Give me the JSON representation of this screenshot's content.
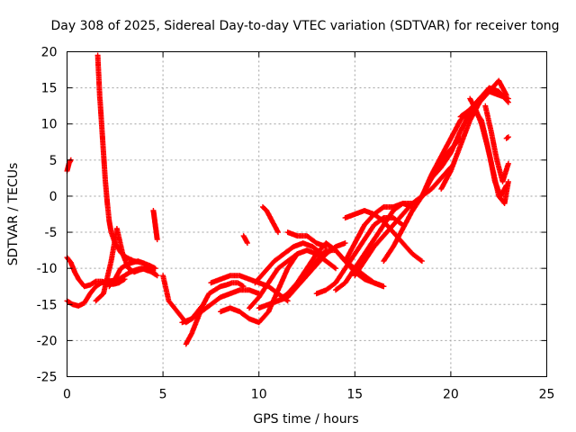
{
  "chart_data": {
    "type": "scatter",
    "title": "Day 308 of 2025, Sidereal Day-to-day VTEC variation (SDTVAR) for receiver tong",
    "xlabel": "GPS time / hours",
    "ylabel": "SDTVAR / TECUs",
    "xlim": [
      0,
      25
    ],
    "ylim": [
      -25,
      20
    ],
    "xticks": [
      0,
      5,
      10,
      15,
      20,
      25
    ],
    "yticks": [
      -25,
      -20,
      -15,
      -10,
      -5,
      0,
      5,
      10,
      15,
      20
    ],
    "xtick_labels": [
      "0",
      "5",
      "10",
      "15",
      "20",
      "25"
    ],
    "ytick_labels": [
      "-25",
      "-20",
      "-15",
      "-10",
      "-5",
      "0",
      "5",
      "10",
      "15",
      "20"
    ],
    "grid": true,
    "marker": "+",
    "color": "#ff0000",
    "series": [
      {
        "name": "s1",
        "x": [
          0.0,
          0.1,
          0.2
        ],
        "y": [
          3.5,
          4.5,
          5.0
        ]
      },
      {
        "name": "s2",
        "x": [
          0.0,
          0.3,
          0.6,
          0.9,
          1.2,
          1.5,
          1.8,
          2.1,
          2.4,
          2.7,
          3.0,
          3.3,
          3.6,
          3.9,
          4.2,
          4.5
        ],
        "y": [
          -14.5,
          -15.0,
          -15.2,
          -14.8,
          -13.5,
          -12.5,
          -12.0,
          -11.8,
          -11.7,
          -11.5,
          -11.0,
          -10.5,
          -10.2,
          -10.0,
          -10.3,
          -10.5
        ]
      },
      {
        "name": "s3",
        "x": [
          0.0,
          0.2,
          0.4,
          0.6,
          0.9,
          1.2,
          1.5,
          1.8,
          2.1,
          2.4,
          2.7,
          3.0
        ],
        "y": [
          -8.5,
          -9.2,
          -10.5,
          -11.5,
          -12.5,
          -12.3,
          -11.8,
          -11.8,
          -12.0,
          -12.2,
          -12.0,
          -11.5
        ]
      },
      {
        "name": "s4",
        "x": [
          1.6,
          1.7,
          1.8,
          1.9,
          2.0,
          2.1,
          2.2,
          2.3,
          2.5,
          2.8,
          3.1,
          3.5,
          3.9,
          4.3,
          4.6
        ],
        "y": [
          19.5,
          14.0,
          10.0,
          6.0,
          2.0,
          -1.0,
          -3.5,
          -5.0,
          -6.5,
          -7.8,
          -8.5,
          -9.0,
          -9.2,
          -9.6,
          -10.0
        ]
      },
      {
        "name": "s5",
        "x": [
          1.5,
          1.9,
          2.3,
          2.6,
          2.9,
          3.2,
          3.5,
          3.8,
          4.1,
          4.4,
          4.7
        ],
        "y": [
          -14.5,
          -13.5,
          -9.0,
          -4.5,
          -8.0,
          -10.0,
          -10.5,
          -10.2,
          -10.0,
          -10.5,
          -11.0
        ]
      },
      {
        "name": "s6",
        "x": [
          2.2,
          2.5,
          2.8,
          3.1,
          3.4,
          3.7,
          4.0,
          4.3,
          4.6
        ],
        "y": [
          -12.5,
          -11.5,
          -10.0,
          -9.5,
          -9.2,
          -9.0,
          -9.3,
          -10.0,
          -10.8
        ]
      },
      {
        "name": "s7",
        "x": [
          4.5,
          4.55,
          4.6,
          4.65,
          4.7
        ],
        "y": [
          -2.0,
          -3.0,
          -4.0,
          -5.0,
          -6.0
        ]
      },
      {
        "name": "s8",
        "x": [
          5.0,
          5.3,
          5.6,
          5.9,
          6.2,
          6.5,
          6.8,
          7.1
        ],
        "y": [
          -11.0,
          -14.5,
          -15.5,
          -16.5,
          -17.5,
          -17.0,
          -16.0,
          -15.0
        ]
      },
      {
        "name": "s9",
        "x": [
          6.2,
          6.5,
          6.8,
          7.1,
          7.4,
          7.7,
          8.0,
          8.3,
          8.6,
          8.9,
          9.2
        ],
        "y": [
          -20.5,
          -19.0,
          -17.0,
          -15.0,
          -13.5,
          -13.0,
          -12.5,
          -12.3,
          -12.0,
          -12.0,
          -12.5
        ]
      },
      {
        "name": "s10",
        "x": [
          6.0,
          6.5,
          7.0,
          7.5,
          8.0,
          8.5,
          9.0,
          9.5,
          10.0
        ],
        "y": [
          -17.5,
          -17.0,
          -16.0,
          -15.0,
          -14.0,
          -13.5,
          -13.0,
          -13.0,
          -13.5
        ]
      },
      {
        "name": "s11",
        "x": [
          7.5,
          8.0,
          8.5,
          9.0,
          9.5,
          10.0,
          10.5,
          11.0,
          11.5
        ],
        "y": [
          -12.0,
          -11.5,
          -11.0,
          -11.0,
          -11.5,
          -12.0,
          -12.5,
          -13.5,
          -14.5
        ]
      },
      {
        "name": "s12",
        "x": [
          8.0,
          8.5,
          9.0,
          9.5,
          10.0,
          10.5,
          11.0,
          11.5,
          12.0
        ],
        "y": [
          -16.0,
          -15.5,
          -16.0,
          -17.0,
          -17.5,
          -16.0,
          -13.0,
          -10.0,
          -8.0
        ]
      },
      {
        "name": "s13",
        "x": [
          9.2,
          9.3,
          9.4
        ],
        "y": [
          -5.5,
          -6.0,
          -6.5
        ]
      },
      {
        "name": "s14",
        "x": [
          9.5,
          10.0,
          10.5,
          11.0,
          11.5,
          12.0,
          12.5,
          13.0,
          13.5,
          14.0
        ],
        "y": [
          -15.5,
          -14.0,
          -12.0,
          -10.0,
          -9.0,
          -8.0,
          -7.5,
          -8.0,
          -9.0,
          -10.0
        ]
      },
      {
        "name": "s15",
        "x": [
          9.8,
          10.3,
          10.8,
          11.3,
          11.8,
          12.3,
          12.8,
          13.3
        ],
        "y": [
          -12.0,
          -10.5,
          -9.0,
          -8.0,
          -7.0,
          -6.5,
          -7.0,
          -8.0
        ]
      },
      {
        "name": "s16",
        "x": [
          10.0,
          10.5,
          11.0,
          11.5,
          12.0,
          12.5,
          13.0,
          13.5,
          14.0,
          14.5
        ],
        "y": [
          -15.5,
          -15.0,
          -14.5,
          -14.0,
          -12.5,
          -11.0,
          -9.5,
          -8.0,
          -7.0,
          -6.5
        ]
      },
      {
        "name": "s17",
        "x": [
          10.2,
          10.4,
          10.6,
          10.8,
          11.0
        ],
        "y": [
          -1.5,
          -2.0,
          -3.0,
          -4.0,
          -5.0
        ]
      },
      {
        "name": "s18",
        "x": [
          11.0,
          11.5,
          12.0,
          12.5,
          13.0,
          13.5,
          14.0,
          14.5,
          15.0,
          15.5,
          16.0,
          16.5
        ],
        "y": [
          -14.5,
          -13.5,
          -12.0,
          -10.0,
          -8.0,
          -6.5,
          -7.5,
          -9.0,
          -10.5,
          -11.5,
          -12.0,
          -12.5
        ]
      },
      {
        "name": "s19",
        "x": [
          11.5,
          12.0,
          12.5,
          13.0,
          13.5
        ],
        "y": [
          -5.0,
          -5.5,
          -5.5,
          -6.5,
          -7.0
        ]
      },
      {
        "name": "s20",
        "x": [
          12.5,
          13.0,
          13.5,
          14.0,
          14.5,
          15.0,
          15.5,
          16.0,
          16.5
        ],
        "y": [
          -11.0,
          -9.0,
          -7.5,
          -7.5,
          -9.0,
          -10.0,
          -11.0,
          -12.0,
          -12.5
        ]
      },
      {
        "name": "s21",
        "x": [
          13.0,
          13.5,
          14.0,
          14.5,
          15.0,
          15.5,
          16.0,
          16.5,
          17.0,
          17.5
        ],
        "y": [
          -13.5,
          -13.0,
          -12.0,
          -10.0,
          -8.0,
          -6.0,
          -4.0,
          -3.0,
          -3.0,
          -4.0
        ]
      },
      {
        "name": "s22",
        "x": [
          14.0,
          14.5,
          15.0,
          15.5,
          16.0,
          16.5,
          17.0,
          17.5,
          18.0
        ],
        "y": [
          -13.0,
          -12.0,
          -10.0,
          -8.0,
          -6.0,
          -4.0,
          -2.0,
          -1.0,
          -1.5
        ]
      },
      {
        "name": "s23",
        "x": [
          14.5,
          15.0,
          15.5,
          16.0,
          16.5,
          17.0,
          17.5,
          18.0
        ],
        "y": [
          -9.0,
          -6.5,
          -4.0,
          -2.5,
          -1.5,
          -1.5,
          -1.0,
          -1.0
        ]
      },
      {
        "name": "s24",
        "x": [
          14.5,
          15.0,
          15.5,
          16.0,
          16.5,
          17.0,
          17.5,
          18.0,
          18.5
        ],
        "y": [
          -3.0,
          -2.5,
          -2.0,
          -2.5,
          -3.5,
          -5.0,
          -6.5,
          -8.0,
          -9.0
        ]
      },
      {
        "name": "s25",
        "x": [
          15.0,
          15.5,
          16.0,
          16.5,
          17.0,
          17.5,
          18.0,
          18.5,
          19.0,
          19.5,
          20.0
        ],
        "y": [
          -11.0,
          -9.0,
          -7.0,
          -5.5,
          -4.0,
          -2.5,
          -1.0,
          0.0,
          1.0,
          2.5,
          4.0
        ]
      },
      {
        "name": "s26",
        "x": [
          16.5,
          17.0,
          17.5,
          18.0,
          18.5,
          19.0,
          19.5,
          20.0,
          20.5
        ],
        "y": [
          -9.0,
          -7.0,
          -4.5,
          -2.0,
          0.0,
          2.5,
          5.0,
          6.5,
          8.0
        ]
      },
      {
        "name": "s27",
        "x": [
          18.0,
          18.5,
          19.0,
          19.5,
          20.0,
          20.5,
          21.0
        ],
        "y": [
          -2.0,
          0.0,
          3.0,
          5.5,
          8.0,
          10.5,
          12.0
        ]
      },
      {
        "name": "s28",
        "x": [
          19.0,
          19.5,
          20.0,
          20.5,
          21.0,
          21.5,
          22.0,
          22.5,
          23.0
        ],
        "y": [
          2.5,
          4.0,
          6.0,
          9.0,
          11.5,
          13.5,
          15.0,
          14.5,
          13.0
        ]
      },
      {
        "name": "s29",
        "x": [
          19.5,
          20.0,
          20.5,
          21.0,
          21.5,
          22.0,
          22.5,
          22.9
        ],
        "y": [
          1.0,
          3.5,
          7.0,
          10.5,
          13.0,
          14.5,
          16.0,
          14.0
        ]
      },
      {
        "name": "s30",
        "x": [
          20.5,
          21.0,
          21.5,
          22.0,
          22.5,
          23.0
        ],
        "y": [
          11.0,
          12.0,
          13.5,
          14.5,
          14.0,
          13.5
        ]
      },
      {
        "name": "s31",
        "x": [
          20.8,
          21.2,
          21.6,
          22.0,
          22.3,
          22.6,
          22.9
        ],
        "y": [
          11.0,
          12.0,
          10.5,
          6.0,
          2.0,
          0.0,
          1.5
        ]
      },
      {
        "name": "s32",
        "x": [
          21.0,
          21.3,
          21.6,
          21.9,
          22.2,
          22.5,
          22.8,
          23.0
        ],
        "y": [
          13.5,
          12.0,
          10.0,
          7.0,
          3.5,
          0.0,
          -1.0,
          2.0
        ]
      },
      {
        "name": "s33",
        "x": [
          21.8,
          22.1,
          22.4,
          22.7,
          23.0
        ],
        "y": [
          12.5,
          9.0,
          5.0,
          2.0,
          4.5
        ]
      },
      {
        "name": "s34",
        "x": [
          22.9,
          23.0
        ],
        "y": [
          8.0,
          8.2
        ]
      }
    ]
  }
}
